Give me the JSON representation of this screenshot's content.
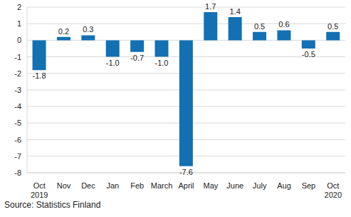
{
  "chart_data": {
    "type": "bar",
    "source": "Source: Statistics Finland",
    "categories": [
      "Oct 2019",
      "Nov",
      "Dec",
      "Jan",
      "Feb",
      "March",
      "April",
      "May",
      "June",
      "July",
      "Aug",
      "Sep",
      "Oct 2020"
    ],
    "values": [
      -1.8,
      0.2,
      0.3,
      -1.0,
      -0.7,
      -1.0,
      -7.6,
      1.7,
      1.4,
      0.5,
      0.6,
      -0.5,
      0.5
    ],
    "value_labels": [
      "-1.8",
      "0.2",
      "0.3",
      "-1.0",
      "-0.7",
      "-1.0",
      "-7.6",
      "1.7",
      "1.4",
      "0.5",
      "0.6",
      "-0.5",
      "0.5"
    ],
    "color": "#1270b3",
    "ylim": [
      -8,
      2
    ],
    "yticks": [
      -8,
      -7,
      -6,
      -5,
      -4,
      -3,
      -2,
      -1,
      0,
      1,
      2
    ],
    "grid": true,
    "data_labels": true
  }
}
